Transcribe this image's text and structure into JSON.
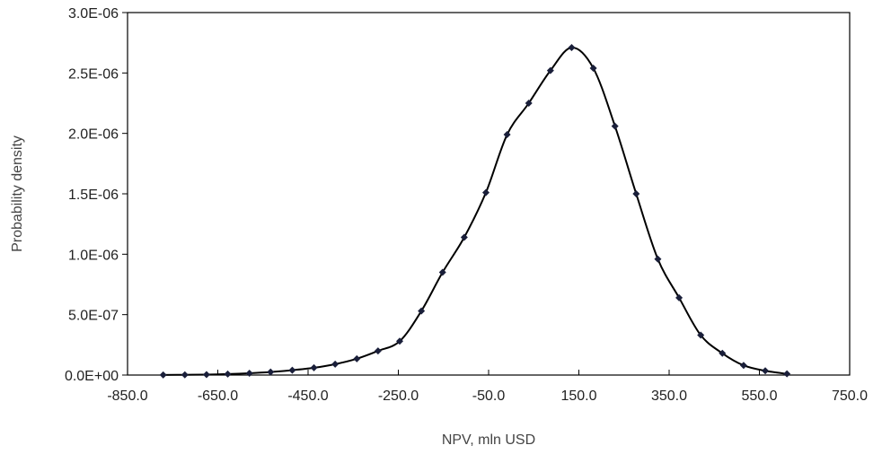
{
  "chart_data": {
    "type": "line",
    "title": "",
    "xlabel": "NPV, mln USD",
    "ylabel": "Probability density",
    "xlim": [
      -850,
      750
    ],
    "ylim": [
      0,
      3e-06
    ],
    "x_ticks": [
      -850,
      -650,
      -450,
      -250,
      -50,
      150,
      350,
      550,
      750
    ],
    "x_tick_labels": [
      "-850.0",
      "-650.0",
      "-450.0",
      "-250.0",
      "-50.0",
      "150.0",
      "350.0",
      "550.0",
      "750.0"
    ],
    "y_ticks": [
      0,
      5e-07,
      1e-06,
      1.5e-06,
      2e-06,
      2.5e-06,
      3e-06
    ],
    "y_tick_labels": [
      "0.0E+00",
      "5.0E-07",
      "1.0E-06",
      "1.5E-06",
      "2.0E-06",
      "2.5E-06",
      "3.0E-06"
    ],
    "grid": false,
    "legend": false,
    "colors": {
      "line": "#000000",
      "marker": "#1a1f3a",
      "axis": "#000000"
    },
    "series": [
      {
        "marker": "diamond",
        "x": [
          -771,
          -723,
          -675,
          -628,
          -580,
          -533,
          -485,
          -437,
          -390,
          -342,
          -295,
          -247,
          -199,
          -152,
          -104,
          -56,
          -9,
          39,
          87,
          134,
          182,
          230,
          277,
          325,
          372,
          420,
          468,
          515,
          563,
          611
        ],
        "y": [
          1e-09,
          2e-09,
          4e-09,
          8e-09,
          1.5e-08,
          2.5e-08,
          4e-08,
          6e-08,
          9e-08,
          1.35e-07,
          2e-07,
          2.8e-07,
          5.3e-07,
          8.5e-07,
          1.14e-06,
          1.51e-06,
          1.99e-06,
          2.25e-06,
          2.52e-06,
          2.71e-06,
          2.54e-06,
          2.06e-06,
          1.5e-06,
          9.6e-07,
          6.4e-07,
          3.3e-07,
          1.8e-07,
          8e-08,
          3.5e-08,
          1e-08
        ]
      }
    ]
  }
}
